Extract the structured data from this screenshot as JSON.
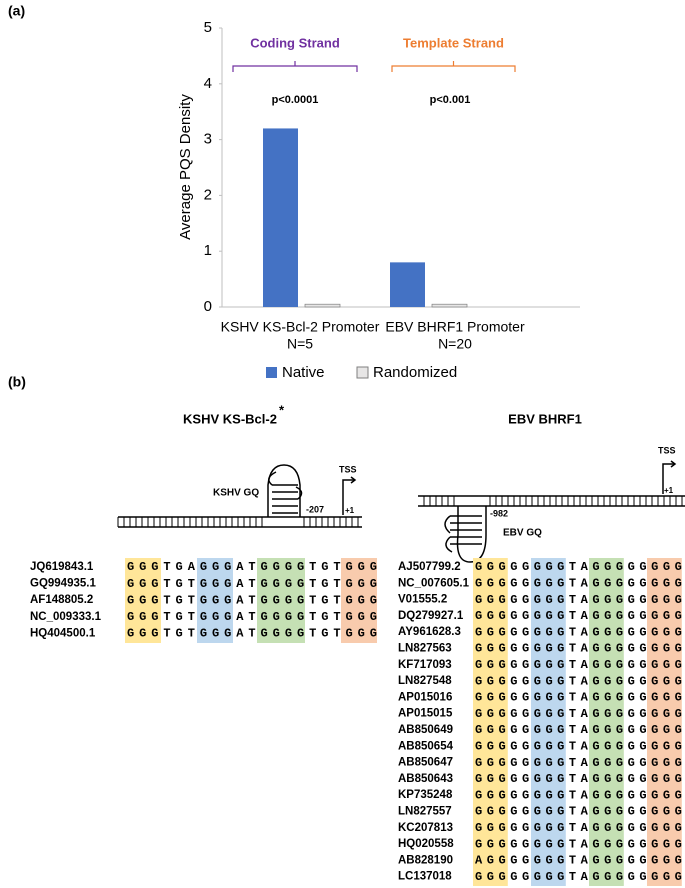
{
  "panel_labels": [
    "(a)",
    "(b)"
  ],
  "chart_data": {
    "type": "bar",
    "y_label": "Average PQS Density",
    "categories": [
      [
        "KSHV KS-Bcl-2 Promoter",
        "N=5"
      ],
      [
        "EBV BHRF1 Promoter",
        "N=20"
      ]
    ],
    "series": [
      {
        "name": "Native",
        "color": "#4472c4",
        "values": [
          3.2,
          0.8
        ]
      },
      {
        "name": "Randomized",
        "color": "#e7e6e6",
        "values": [
          0.05,
          0.05
        ]
      }
    ],
    "ylim": [
      0,
      5
    ],
    "yticks": [
      0,
      1,
      2,
      3,
      4,
      5
    ],
    "annotations": [
      {
        "text": "Coding Strand",
        "color": "#7030a0"
      },
      {
        "text": "Template Strand",
        "color": "#ed7d31"
      }
    ],
    "p_values": [
      "p<0.0001",
      "p<0.001"
    ]
  },
  "panel_b": {
    "left": {
      "title": "KSHV KS-Bcl-2",
      "title_mark": "*",
      "gq_label": "KSHV GQ",
      "position": "-207",
      "tss": "TSS",
      "start": "+1",
      "rows": [
        {
          "id": "JQ619843.1",
          "sequence": "GGGTGAGGGATGGGGTGTGGG"
        },
        {
          "id": "GQ994935.1",
          "sequence": "GGGTGTGGGATGGGGTGTGGG"
        },
        {
          "id": "AF148805.2",
          "sequence": "GGGTGTGGGATGGGGTGTGGG"
        },
        {
          "id": "NC_009333.1",
          "sequence": "GGGTGTGGGATGGGGTGTGGG"
        },
        {
          "id": "HQ404500.1",
          "sequence": "GGGTGTGGGATGGGGTGTGGG"
        }
      ]
    },
    "right": {
      "title": "EBV BHRF1",
      "gq_label": "EBV GQ",
      "position": "-982",
      "tss": "TSS",
      "start": "+1",
      "rows": [
        {
          "id": "AJ507799.2",
          "sequence": "GGGGGGGGTAGGGGGGGG"
        },
        {
          "id": "NC_007605.1",
          "sequence": "GGGGGGGGTAGGGGGGGG"
        },
        {
          "id": "V01555.2",
          "sequence": "GGGGGGGGTAGGGGGGGG"
        },
        {
          "id": "DQ279927.1",
          "sequence": "GGGGGGGGTAGGGGGGGG"
        },
        {
          "id": "AY961628.3",
          "sequence": "GGGGGGGGTAGGGGGGGG"
        },
        {
          "id": "LN827563",
          "sequence": "GGGGGGGGTAGGGGGGGG"
        },
        {
          "id": "KF717093",
          "sequence": "GGGGGGGGTAGGGGGGGG"
        },
        {
          "id": "LN827548",
          "sequence": "GGGGGGGGTAGGGGGGGG"
        },
        {
          "id": "AP015016",
          "sequence": "GGGGGGGGTAGGGGGGGG"
        },
        {
          "id": "AP015015",
          "sequence": "GGGGGGGGTAGGGGGGGG"
        },
        {
          "id": "AB850649",
          "sequence": "GGGGGGGGTAGGGGGGGG"
        },
        {
          "id": "AB850654",
          "sequence": "GGGGGGGGTAGGGGGGGG"
        },
        {
          "id": "AB850647",
          "sequence": "GGGGGGGGTAGGGGGGGG"
        },
        {
          "id": "AB850643",
          "sequence": "GGGGGGGGTAGGGGGGGG"
        },
        {
          "id": "KP735248",
          "sequence": "GGGGGGGGTAGGGGGGGG"
        },
        {
          "id": "LN827557",
          "sequence": "GGGGGGGGTAGGGGGGGG"
        },
        {
          "id": "KC207813",
          "sequence": "GGGGGGGGTAGGGGGGGG"
        },
        {
          "id": "HQ020558",
          "sequence": "GGGGGGGGTAGGGGGGGG"
        },
        {
          "id": "AB828190",
          "sequence": "AGGGGGGGTAGGGGGGGG"
        },
        {
          "id": "LC137018",
          "sequence": "GGGGGGGGTAGGGGGGGG"
        }
      ]
    }
  }
}
